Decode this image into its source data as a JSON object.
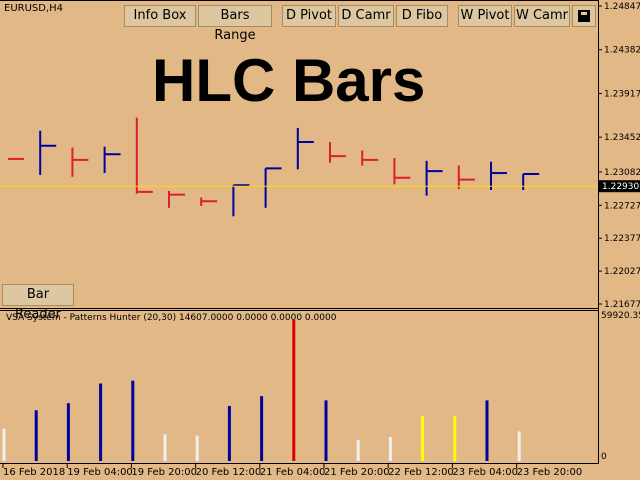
{
  "symbol_label": "EURUSD,H4",
  "title_overlay": "HLC Bars",
  "buttons": {
    "info_box": "Info Box",
    "bars_range": "Bars Range",
    "d_pivot": "D Pivot",
    "d_camr": "D Camr",
    "d_fibo": "D Fibo",
    "w_pivot": "W Pivot",
    "w_camr": "W Camr",
    "bar_reader": "Bar Reader"
  },
  "icons": {
    "print": "printer-icon"
  },
  "colors": {
    "up": "#0000a0",
    "down": "#dc1e32",
    "current_price_line": "#ffd700",
    "price_tag_bg": "#000000"
  },
  "price_axis": {
    "ticks": [
      "1.24847",
      "1.24382",
      "1.23917",
      "1.23452",
      "1.22987",
      "1.22522",
      "1.22057",
      "1.21592",
      "1.21127",
      "1.20662",
      "1.20197",
      "1.19732"
    ],
    "labels": [
      "1.24847",
      "1.24382",
      "1.23917",
      "1.23452",
      "1.23082",
      "1.22727",
      "1.22377",
      "1.22027",
      "1.21677"
    ],
    "current_price": "1.22930"
  },
  "indicator": {
    "label": "VSA System - Patterns Hunter (20,30) 14607.0000 0.0000 0.0000 0.0000",
    "max_label": "59920.35",
    "zero_label": "0"
  },
  "time_axis": [
    "16 Feb 2018",
    "19 Feb 04:00",
    "19 Feb 20:00",
    "20 Feb 12:00",
    "21 Feb 04:00",
    "21 Feb 20:00",
    "22 Feb 12:00",
    "23 Feb 04:00",
    "23 Feb 20:00"
  ],
  "chart_data": {
    "type": "ohlc",
    "bars": [
      {
        "high": 1.2322,
        "low": 1.2322,
        "close": 1.2322,
        "dir": "down"
      },
      {
        "high": 1.2352,
        "low": 1.2305,
        "close": 1.2336,
        "dir": "up"
      },
      {
        "high": 1.2334,
        "low": 1.2303,
        "close": 1.2321,
        "dir": "down"
      },
      {
        "high": 1.2335,
        "low": 1.2307,
        "close": 1.2327,
        "dir": "up"
      },
      {
        "high": 1.2366,
        "low": 1.2285,
        "close": 1.2287,
        "dir": "down"
      },
      {
        "high": 1.2288,
        "low": 1.227,
        "close": 1.2284,
        "dir": "down"
      },
      {
        "high": 1.2281,
        "low": 1.2272,
        "close": 1.2277,
        "dir": "down"
      },
      {
        "high": 1.2294,
        "low": 1.2261,
        "close": 1.2294,
        "dir": "up"
      },
      {
        "high": 1.2312,
        "low": 1.227,
        "close": 1.2312,
        "dir": "up"
      },
      {
        "high": 1.2355,
        "low": 1.2311,
        "close": 1.234,
        "dir": "up"
      },
      {
        "high": 1.234,
        "low": 1.2318,
        "close": 1.2325,
        "dir": "down"
      },
      {
        "high": 1.2331,
        "low": 1.2315,
        "close": 1.2321,
        "dir": "down"
      },
      {
        "high": 1.2323,
        "low": 1.2295,
        "close": 1.2302,
        "dir": "down"
      },
      {
        "high": 1.232,
        "low": 1.2283,
        "close": 1.2309,
        "dir": "up"
      },
      {
        "high": 1.2315,
        "low": 1.229,
        "close": 1.23,
        "dir": "down"
      },
      {
        "high": 1.2319,
        "low": 1.2289,
        "close": 1.2307,
        "dir": "up"
      },
      {
        "high": 1.2306,
        "low": 1.2289,
        "close": 1.2306,
        "dir": "up"
      }
    ],
    "volumes": [
      {
        "value": 0.23,
        "color": "#f0f0f0"
      },
      {
        "value": 0.36,
        "color": "#0000a0"
      },
      {
        "value": 0.41,
        "color": "#0000a0"
      },
      {
        "value": 0.55,
        "color": "#0000a0"
      },
      {
        "value": 0.57,
        "color": "#0000a0"
      },
      {
        "value": 0.19,
        "color": "#f0f0f0"
      },
      {
        "value": 0.18,
        "color": "#f0f0f0"
      },
      {
        "value": 0.39,
        "color": "#0000a0"
      },
      {
        "value": 0.46,
        "color": "#0000a0"
      },
      {
        "value": 1.0,
        "color": "#dc0000"
      },
      {
        "value": 0.43,
        "color": "#0000a0"
      },
      {
        "value": 0.15,
        "color": "#f0f0f0"
      },
      {
        "value": 0.17,
        "color": "#f0f0f0"
      },
      {
        "value": 0.32,
        "color": "#ffff00"
      },
      {
        "value": 0.32,
        "color": "#ffff00"
      },
      {
        "value": 0.43,
        "color": "#0000a0"
      },
      {
        "value": 0.21,
        "color": "#f0f0f0"
      }
    ]
  }
}
